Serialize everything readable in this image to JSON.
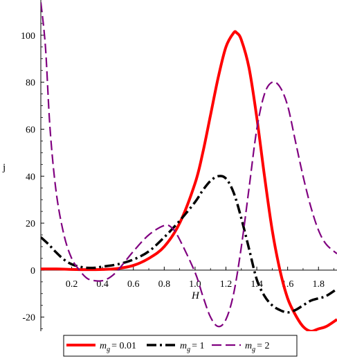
{
  "chart_data": {
    "type": "line",
    "title": "",
    "xlabel": "H",
    "ylabel": "j",
    "xlim": [
      0,
      1.92
    ],
    "ylim": [
      -26,
      115
    ],
    "xticks": [
      0.2,
      0.4,
      0.6,
      0.8,
      1.0,
      1.2,
      1.4,
      1.6,
      1.8
    ],
    "xtick_labels": [
      "0.2",
      "0.4",
      "0.6",
      "0.8",
      "1.0",
      "1.2",
      "1.4",
      "1.6",
      "1.8"
    ],
    "yticks": [
      -20,
      0,
      20,
      40,
      60,
      80,
      100
    ],
    "ytick_labels": [
      "-20",
      "0",
      "20",
      "40",
      "60",
      "80",
      "100"
    ],
    "grid": false,
    "legend_position": "bottom",
    "series": [
      {
        "legend_label": "m_g = 0.01",
        "legend_main": "m",
        "legend_sub": "g",
        "legend_value": "= 0.01",
        "color": "#ff0000",
        "style": "solid",
        "x": [
          0.0,
          0.1,
          0.2,
          0.3,
          0.4,
          0.5,
          0.6,
          0.7,
          0.8,
          0.9,
          1.0,
          1.05,
          1.1,
          1.15,
          1.2,
          1.25,
          1.27,
          1.3,
          1.35,
          1.4,
          1.45,
          1.5,
          1.55,
          1.6,
          1.65,
          1.7,
          1.75,
          1.8,
          1.85,
          1.92
        ],
        "y": [
          0.5,
          0.5,
          0.3,
          0.2,
          0.3,
          0.7,
          2,
          5,
          10,
          20,
          37,
          50,
          66,
          82,
          95,
          101,
          101,
          98,
          86,
          65,
          40,
          17,
          0,
          -12,
          -19,
          -24,
          -26,
          -25,
          -24,
          -21
        ]
      },
      {
        "legend_label": "m_g = 1",
        "legend_main": "m",
        "legend_sub": "g",
        "legend_value": "= 1",
        "color": "#000000",
        "style": "dashdot",
        "x": [
          0.0,
          0.05,
          0.1,
          0.15,
          0.2,
          0.25,
          0.3,
          0.35,
          0.4,
          0.5,
          0.6,
          0.7,
          0.8,
          0.9,
          1.0,
          1.05,
          1.1,
          1.15,
          1.2,
          1.25,
          1.3,
          1.35,
          1.4,
          1.45,
          1.5,
          1.55,
          1.6,
          1.65,
          1.7,
          1.75,
          1.8,
          1.85,
          1.92
        ],
        "y": [
          14,
          11,
          7.5,
          4.5,
          2.5,
          1.5,
          1,
          1,
          1.5,
          2.5,
          4.5,
          8,
          14,
          21,
          29,
          34,
          38,
          40,
          39,
          33,
          22,
          9,
          -4,
          -11,
          -15,
          -17,
          -18,
          -17,
          -15,
          -13,
          -12,
          -11,
          -8
        ]
      },
      {
        "legend_label": "m_g = 2",
        "legend_main": "m",
        "legend_sub": "g",
        "legend_value": "= 2",
        "color": "#800080",
        "style": "dashed",
        "x": [
          0.0,
          0.03,
          0.06,
          0.1,
          0.15,
          0.2,
          0.25,
          0.3,
          0.35,
          0.4,
          0.45,
          0.5,
          0.6,
          0.7,
          0.8,
          0.85,
          0.9,
          1.0,
          1.05,
          1.1,
          1.15,
          1.2,
          1.25,
          1.3,
          1.35,
          1.4,
          1.45,
          1.5,
          1.55,
          1.6,
          1.65,
          1.7,
          1.75,
          1.8,
          1.85,
          1.92
        ],
        "y": [
          114,
          95,
          60,
          33,
          15,
          5,
          0,
          -3.5,
          -4.5,
          -4.5,
          -3,
          0,
          8,
          15,
          19,
          18,
          13,
          -1,
          -11,
          -20,
          -24,
          -21,
          -10,
          10,
          35,
          60,
          75,
          80,
          78,
          70,
          55,
          40,
          27,
          17,
          11,
          7
        ]
      }
    ]
  }
}
